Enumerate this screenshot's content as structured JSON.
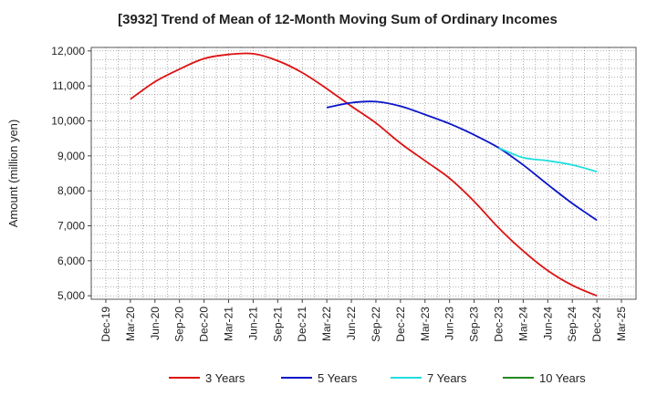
{
  "chart_data": {
    "type": "line",
    "title": "[3932]  Trend of Mean of 12-Month Moving Sum of Ordinary Incomes",
    "ylabel": "Amount (million yen)",
    "xlabel": "",
    "ylim": [
      4900,
      12100
    ],
    "y_ticks": [
      5000,
      6000,
      7000,
      8000,
      9000,
      10000,
      11000,
      12000
    ],
    "y_tick_labels": [
      "5,000",
      "6,000",
      "7,000",
      "8,000",
      "9,000",
      "10,000",
      "11,000",
      "12,000"
    ],
    "x_tick_labels": [
      "Dec-19",
      "Mar-20",
      "Jun-20",
      "Sep-20",
      "Dec-20",
      "Mar-21",
      "Jun-21",
      "Sep-21",
      "Dec-21",
      "Mar-22",
      "Jun-22",
      "Sep-22",
      "Dec-22",
      "Mar-23",
      "Jun-23",
      "Sep-23",
      "Dec-23",
      "Mar-24",
      "Jun-24",
      "Sep-24",
      "Dec-24",
      "Mar-25"
    ],
    "grid": true,
    "legend_position": "bottom",
    "series": [
      {
        "name": "3 Years",
        "color": "#dd1111",
        "x": [
          "Mar-20",
          "Jun-20",
          "Sep-20",
          "Dec-20",
          "Mar-21",
          "Jun-21",
          "Sep-21",
          "Dec-21",
          "Mar-22",
          "Jun-22",
          "Sep-22",
          "Dec-22",
          "Mar-23",
          "Jun-23",
          "Sep-23",
          "Dec-23",
          "Mar-24",
          "Jun-24",
          "Sep-24",
          "Dec-24"
        ],
        "values": [
          10620,
          11120,
          11480,
          11780,
          11900,
          11920,
          11720,
          11380,
          10920,
          10420,
          9940,
          9360,
          8860,
          8360,
          7700,
          6940,
          6280,
          5720,
          5300,
          5000
        ]
      },
      {
        "name": "5 Years",
        "color": "#0a14c8",
        "x": [
          "Mar-22",
          "Jun-22",
          "Sep-22",
          "Dec-22",
          "Mar-23",
          "Jun-23",
          "Sep-23",
          "Dec-23",
          "Mar-24",
          "Jun-24",
          "Sep-24",
          "Dec-24"
        ],
        "values": [
          10380,
          10520,
          10550,
          10420,
          10180,
          9920,
          9600,
          9230,
          8740,
          8180,
          7640,
          7160
        ]
      },
      {
        "name": "7 Years",
        "color": "#22dddd",
        "x": [
          "Dec-23",
          "Mar-24",
          "Jun-24",
          "Sep-24",
          "Dec-24"
        ],
        "values": [
          9230,
          8950,
          8860,
          8740,
          8550
        ]
      },
      {
        "name": "10 Years",
        "color": "#228822",
        "x": [],
        "values": []
      }
    ]
  }
}
